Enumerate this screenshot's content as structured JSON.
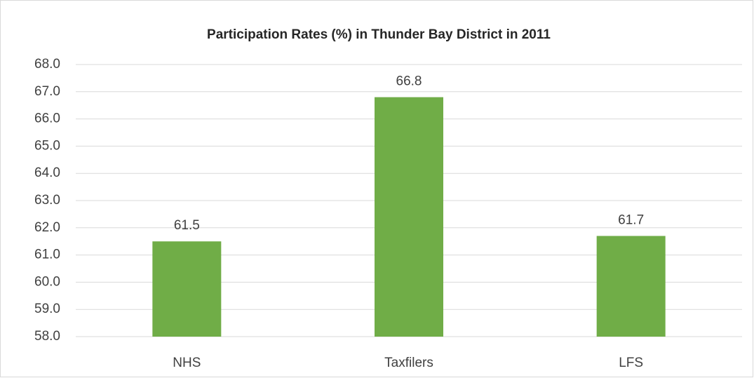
{
  "chart_data": {
    "type": "bar",
    "title": "Participation Rates (%) in Thunder Bay District in 2011",
    "categories": [
      "NHS",
      "Taxfilers",
      "LFS"
    ],
    "values": [
      61.5,
      66.8,
      61.7
    ],
    "color": "#70ad47",
    "ylim": [
      58,
      68
    ],
    "yticks": [
      {
        "value": 58,
        "label": "58.0"
      },
      {
        "value": 59,
        "label": "59.0"
      },
      {
        "value": 60,
        "label": "60.0"
      },
      {
        "value": 61,
        "label": "61.0"
      },
      {
        "value": 62,
        "label": "62.0"
      },
      {
        "value": 63,
        "label": "63.0"
      },
      {
        "value": 64,
        "label": "64.0"
      },
      {
        "value": 65,
        "label": "65.0"
      },
      {
        "value": 66,
        "label": "66.0"
      },
      {
        "value": 67,
        "label": "67.0"
      },
      {
        "value": 68,
        "label": "68.0"
      }
    ],
    "grid": true
  }
}
